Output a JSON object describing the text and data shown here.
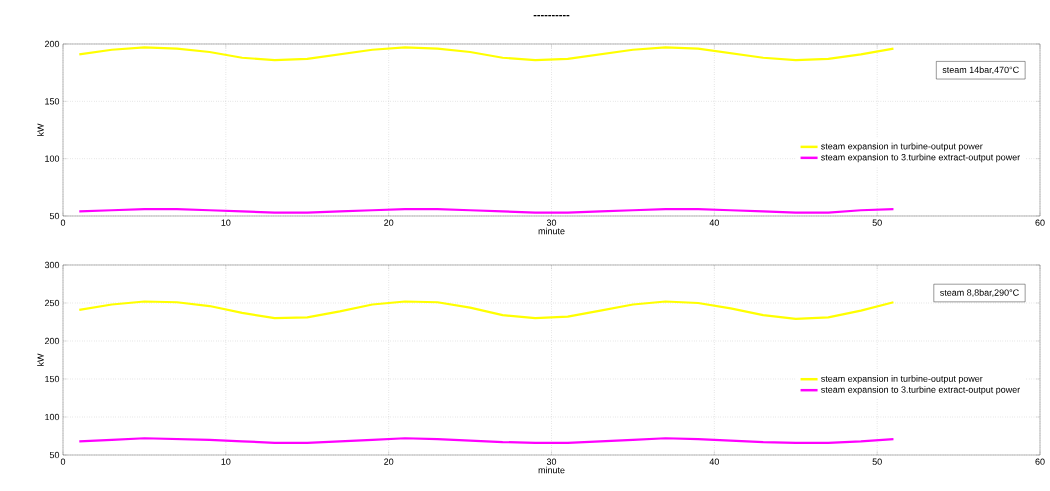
{
  "chart_data": [
    {
      "type": "line",
      "title": "----------",
      "xlabel": "minute",
      "ylabel": "kW",
      "xlim": [
        0,
        60
      ],
      "ylim": [
        50,
        200
      ],
      "xticks": [
        0,
        10,
        20,
        30,
        40,
        50,
        60
      ],
      "yticks": [
        50,
        100,
        150,
        200
      ],
      "grid": true,
      "legend": "right",
      "annotations": [
        "steam 14bar,470°C"
      ],
      "x": [
        1,
        3,
        5,
        7,
        9,
        11,
        13,
        15,
        17,
        19,
        21,
        23,
        25,
        27,
        29,
        31,
        33,
        35,
        37,
        39,
        41,
        43,
        45,
        47,
        49,
        51
      ],
      "series": [
        {
          "name": "steam expansion in turbine-output power",
          "color": "#ffff00",
          "values": [
            191,
            195,
            197,
            196,
            193,
            188,
            186,
            187,
            191,
            195,
            197,
            196,
            193,
            188,
            186,
            187,
            191,
            195,
            197,
            196,
            192,
            188,
            186,
            187,
            191,
            196
          ]
        },
        {
          "name": "steam expansion to 3.turbine extract-output power",
          "color": "#ff00ff",
          "values": [
            54,
            55,
            56,
            56,
            55,
            54,
            53,
            53,
            54,
            55,
            56,
            56,
            55,
            54,
            53,
            53,
            54,
            55,
            56,
            56,
            55,
            54,
            53,
            53,
            55,
            56
          ]
        }
      ]
    },
    {
      "type": "line",
      "xlabel": "minute",
      "ylabel": "kW",
      "xlim": [
        0,
        60
      ],
      "ylim": [
        50,
        300
      ],
      "xticks": [
        0,
        10,
        20,
        30,
        40,
        50,
        60
      ],
      "yticks": [
        50,
        100,
        150,
        200,
        250,
        300
      ],
      "grid": true,
      "legend": "right",
      "annotations": [
        "steam 8,8bar,290°C"
      ],
      "x": [
        1,
        3,
        5,
        7,
        9,
        11,
        13,
        15,
        17,
        19,
        21,
        23,
        25,
        27,
        29,
        31,
        33,
        35,
        37,
        39,
        41,
        43,
        45,
        47,
        49,
        51
      ],
      "series": [
        {
          "name": "steam expansion in turbine-output power",
          "color": "#ffff00",
          "values": [
            241,
            248,
            252,
            251,
            246,
            237,
            230,
            231,
            239,
            248,
            252,
            251,
            244,
            234,
            230,
            232,
            240,
            248,
            252,
            250,
            243,
            234,
            229,
            231,
            240,
            251
          ]
        },
        {
          "name": "steam expansion to 3.turbine extract-output power",
          "color": "#ff00ff",
          "values": [
            68,
            70,
            72,
            71,
            70,
            68,
            66,
            66,
            68,
            70,
            72,
            71,
            69,
            67,
            66,
            66,
            68,
            70,
            72,
            71,
            69,
            67,
            66,
            66,
            68,
            71
          ]
        }
      ]
    }
  ]
}
